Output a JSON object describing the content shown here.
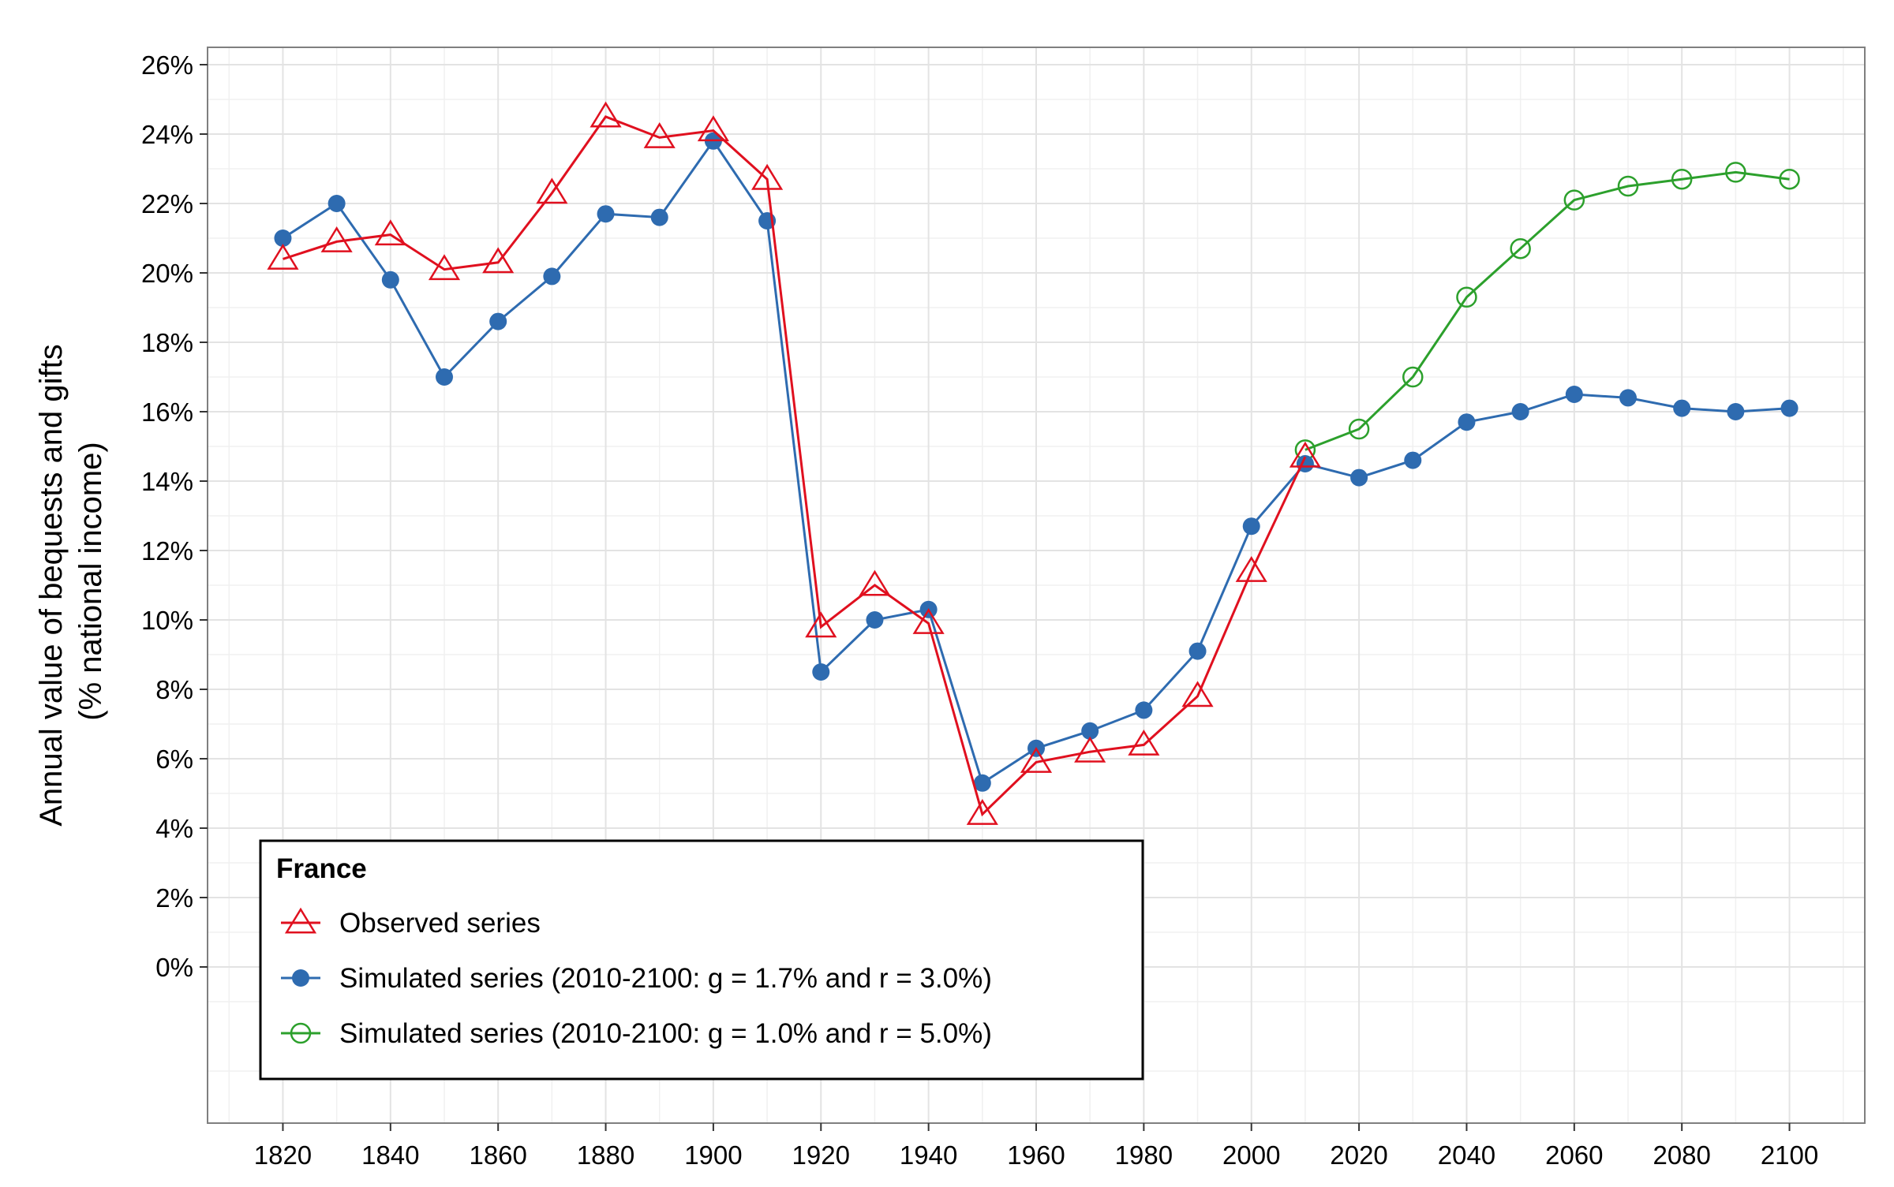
{
  "chart_data": {
    "type": "line",
    "xlabel": "",
    "ylabel": "Annual value of bequests and gifts",
    "ylabel2": "(% national income)",
    "xlim": [
      1806,
      2114
    ],
    "ylim": [
      -4.5,
      26.5
    ],
    "x_ticks": [
      1820,
      1840,
      1860,
      1880,
      1900,
      1920,
      1940,
      1960,
      1980,
      2000,
      2020,
      2040,
      2060,
      2080,
      2100
    ],
    "x_tick_labels": [
      "1820",
      "1840",
      "1860",
      "1880",
      "1900",
      "1920",
      "1940",
      "1960",
      "1980",
      "2000",
      "2020",
      "2040",
      "2060",
      "2080",
      "2100"
    ],
    "y_ticks": [
      0,
      2,
      4,
      6,
      8,
      10,
      12,
      14,
      16,
      18,
      20,
      22,
      24,
      26
    ],
    "y_tick_labels": [
      "0%",
      "2%",
      "4%",
      "6%",
      "8%",
      "10%",
      "12%",
      "14%",
      "16%",
      "18%",
      "20%",
      "22%",
      "24%",
      "26%"
    ],
    "grid": true,
    "legend": {
      "title": "France",
      "placement": "bottom-left"
    },
    "series": [
      {
        "name": "Observed series",
        "color": "#e0101f",
        "marker": "open-triangle",
        "x": [
          1820,
          1830,
          1840,
          1850,
          1860,
          1870,
          1880,
          1890,
          1900,
          1910,
          1920,
          1930,
          1940,
          1950,
          1960,
          1970,
          1980,
          1990,
          2000,
          2010
        ],
        "y": [
          20.4,
          20.9,
          21.1,
          20.1,
          20.3,
          22.3,
          24.5,
          23.9,
          24.1,
          22.7,
          9.8,
          11.0,
          9.9,
          4.4,
          5.9,
          6.2,
          6.4,
          7.8,
          11.4,
          14.7
        ]
      },
      {
        "name": "Simulated series (2010-2100: g = 1.7% and r = 3.0%)",
        "color": "#2e6bb0",
        "marker": "filled-circle",
        "x": [
          1820,
          1830,
          1840,
          1850,
          1860,
          1870,
          1880,
          1890,
          1900,
          1910,
          1920,
          1930,
          1940,
          1950,
          1960,
          1970,
          1980,
          1990,
          2000,
          2010,
          2020,
          2030,
          2040,
          2050,
          2060,
          2070,
          2080,
          2090,
          2100
        ],
        "y": [
          21.0,
          22.0,
          19.8,
          17.0,
          18.6,
          19.9,
          21.7,
          21.6,
          23.8,
          21.5,
          8.5,
          10.0,
          10.3,
          5.3,
          6.3,
          6.8,
          7.4,
          9.1,
          12.7,
          14.5,
          14.1,
          14.6,
          15.7,
          16.0,
          16.5,
          16.4,
          16.1,
          16.0,
          16.1
        ]
      },
      {
        "name": "Simulated series (2010-2100: g = 1.0% and r = 5.0%)",
        "color": "#2ca02c",
        "marker": "open-circle",
        "x": [
          2010,
          2020,
          2030,
          2040,
          2050,
          2060,
          2070,
          2080,
          2090,
          2100
        ],
        "y": [
          14.9,
          15.5,
          17.0,
          19.3,
          20.7,
          22.1,
          22.5,
          22.7,
          22.9,
          22.7
        ]
      }
    ]
  }
}
